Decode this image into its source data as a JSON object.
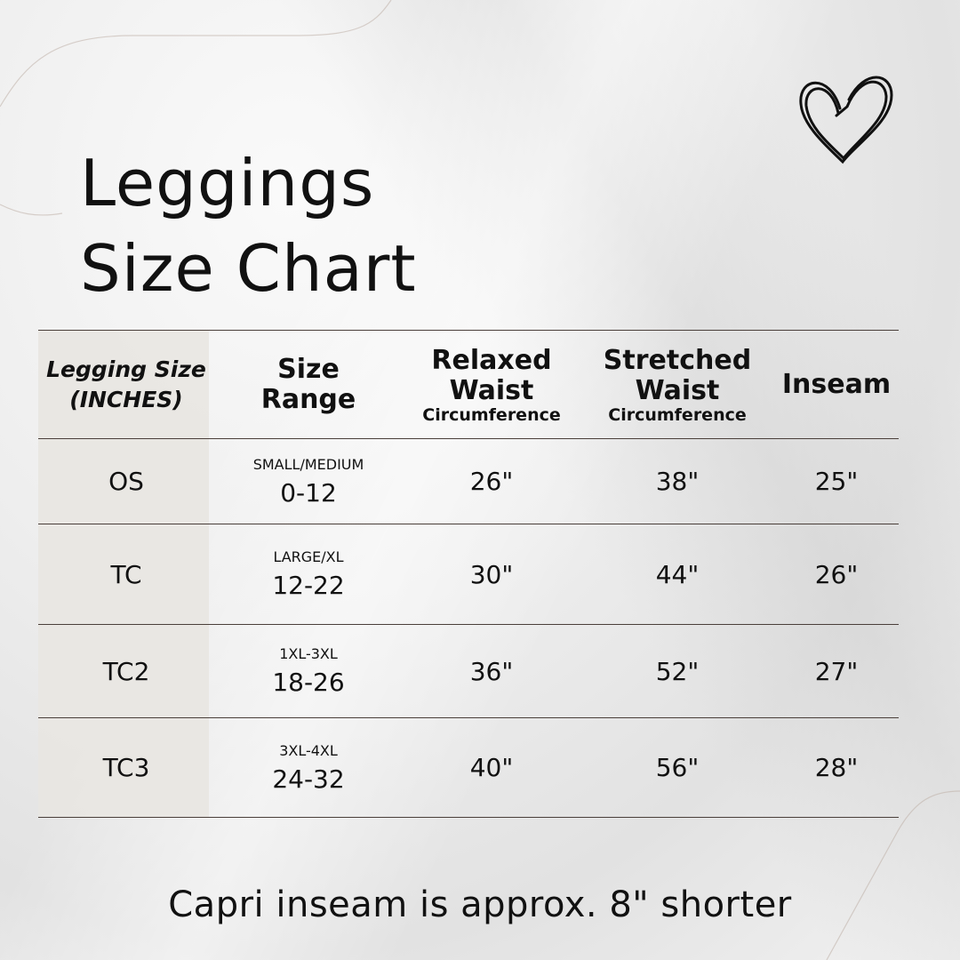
{
  "title_line1": "Leggings",
  "title_line2": "Size Chart",
  "decoration": {
    "icon": "heart-icon"
  },
  "headers": [
    {
      "main": "Legging Size",
      "sub": "(INCHES)"
    },
    {
      "main": "Size",
      "sub": "Range"
    },
    {
      "main": "Relaxed",
      "line2": "Waist",
      "sub": "Circumference"
    },
    {
      "main": "Stretched",
      "line2": "Waist",
      "sub": "Circumference"
    },
    {
      "main": "Inseam"
    }
  ],
  "rows": [
    {
      "size": "OS",
      "range_label": "SMALL/MEDIUM",
      "range": "0-12",
      "relaxed": "26\"",
      "stretched": "38\"",
      "inseam": "25\""
    },
    {
      "size": "TC",
      "range_label": "LARGE/XL",
      "range": "12-22",
      "relaxed": "30\"",
      "stretched": "44\"",
      "inseam": "26\""
    },
    {
      "size": "TC2",
      "range_label": "1XL-3XL",
      "range": "18-26",
      "relaxed": "36\"",
      "stretched": "52\"",
      "inseam": "27\""
    },
    {
      "size": "TC3",
      "range_label": "3XL-4XL",
      "range": "24-32",
      "relaxed": "40\"",
      "stretched": "56\"",
      "inseam": "28\""
    }
  ],
  "footer": "Capri inseam is approx. 8\" shorter"
}
